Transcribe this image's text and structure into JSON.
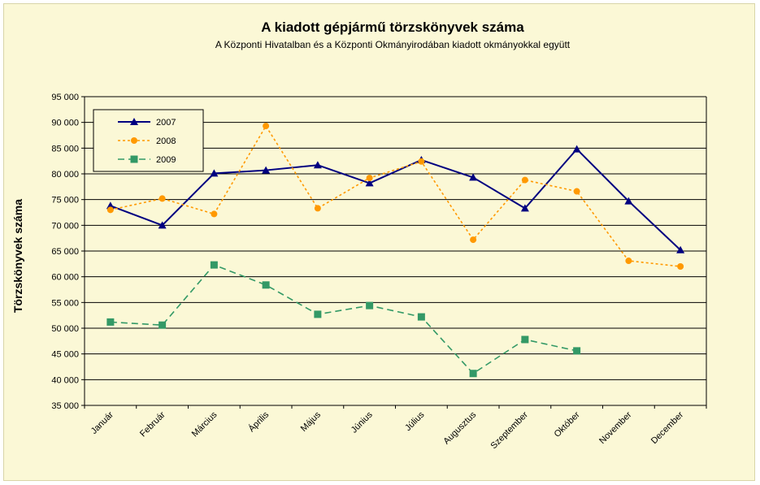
{
  "chart_data": {
    "type": "line",
    "title": "A  kiadott gépjármű  törzskönyvek száma",
    "subtitle": "A Központi Hivatalban és a Központi Okmányirodában kiadott okmányokkal együtt",
    "xlabel": "",
    "ylabel": "Törzskönyvek száma",
    "ylim": [
      35000,
      95000
    ],
    "ytick_step": 5000,
    "ytick_labels": [
      "35 000",
      "40 000",
      "45 000",
      "50 000",
      "55 000",
      "60 000",
      "65 000",
      "70 000",
      "75 000",
      "80 000",
      "85 000",
      "90 000",
      "95 000"
    ],
    "grid": "horizontal",
    "legend_position": "top-left",
    "categories": [
      "Január",
      "Február",
      "Március",
      "Április",
      "Május",
      "Június",
      "Július",
      "Augusztus",
      "Szeptember",
      "Október",
      "November",
      "December"
    ],
    "series": [
      {
        "name": "2007",
        "color": "#000080",
        "line_style": "solid",
        "marker": "triangle",
        "values": [
          73800,
          70000,
          80100,
          80700,
          81700,
          78200,
          82700,
          79300,
          73300,
          84800,
          74700,
          65200
        ]
      },
      {
        "name": "2008",
        "color": "#ff9900",
        "line_style": "dotted",
        "marker": "circle",
        "values": [
          73000,
          75200,
          72200,
          89300,
          73300,
          79200,
          82400,
          67200,
          78800,
          76600,
          63100,
          62000
        ]
      },
      {
        "name": "2009",
        "color": "#339966",
        "line_style": "dashed",
        "marker": "square",
        "values": [
          51200,
          50600,
          62300,
          58400,
          52700,
          54400,
          52200,
          41200,
          47800,
          45600,
          null,
          null
        ]
      }
    ]
  }
}
